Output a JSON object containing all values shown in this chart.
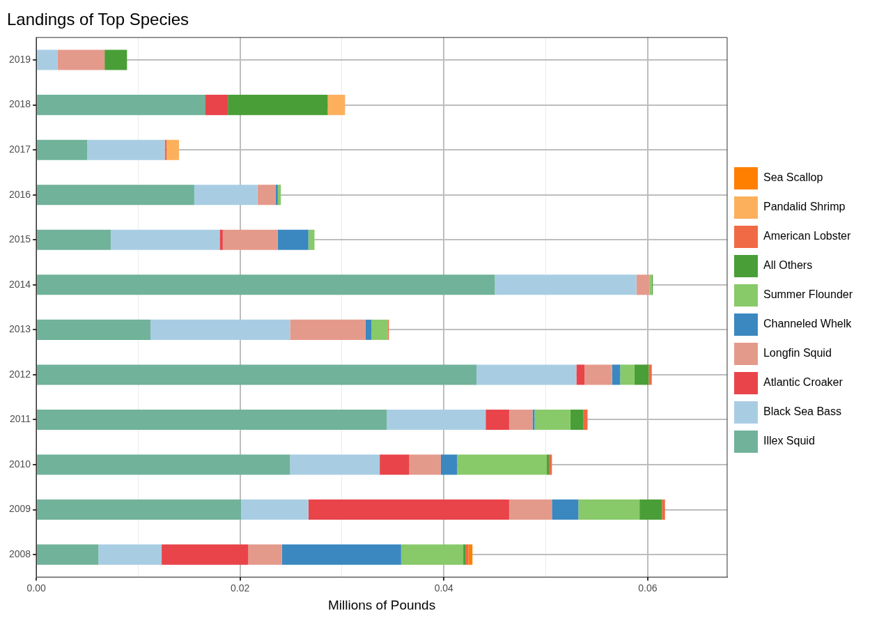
{
  "chart_data": {
    "type": "bar",
    "orientation": "horizontal",
    "stacked": true,
    "title": "Landings of Top Species",
    "xlabel": "Millions of Pounds",
    "categories": [
      "2019",
      "2018",
      "2017",
      "2016",
      "2015",
      "2014",
      "2013",
      "2012",
      "2011",
      "2010",
      "2009",
      "2008"
    ],
    "xlim": [
      0,
      0.0678
    ],
    "xticks": [
      {
        "value": 0,
        "label": "0.00"
      },
      {
        "value": 0.01,
        "label": null
      },
      {
        "value": 0.02,
        "label": "0.02"
      },
      {
        "value": 0.03,
        "label": null
      },
      {
        "value": 0.04,
        "label": "0.04"
      },
      {
        "value": 0.05,
        "label": null
      },
      {
        "value": 0.06,
        "label": "0.06"
      }
    ],
    "grid": true,
    "legend": "right",
    "series": [
      {
        "name": "Illex Squid",
        "color": "#70b29a",
        "values": [
          null,
          0.0166,
          0.005,
          0.0155,
          0.0073,
          0.045,
          0.0112,
          0.0432,
          0.0344,
          0.0249,
          0.0201,
          0.0061
        ]
      },
      {
        "name": "Black Sea Bass",
        "color": "#a8cde3",
        "values": [
          0.0021,
          null,
          0.0076,
          0.0062,
          0.0107,
          0.0139,
          0.0137,
          0.0098,
          0.0097,
          0.0088,
          0.0066,
          0.0062
        ]
      },
      {
        "name": "Atlantic Croaker",
        "color": "#e8444a",
        "values": [
          null,
          0.0022,
          null,
          null,
          0.0003,
          null,
          null,
          0.0008,
          0.0023,
          0.0029,
          0.0197,
          0.0085
        ]
      },
      {
        "name": "Longfin Squid",
        "color": "#e49a8b",
        "values": [
          0.0046,
          null,
          null,
          0.0018,
          0.0054,
          0.0013,
          0.0074,
          0.0027,
          0.0023,
          0.0031,
          0.0042,
          0.0033
        ]
      },
      {
        "name": "Channeled Whelk",
        "color": "#3b88c0",
        "values": [
          null,
          null,
          null,
          0.0002,
          0.003,
          null,
          0.0006,
          0.0008,
          0.0002,
          0.0016,
          0.0026,
          0.0117
        ]
      },
      {
        "name": "Summer Flounder",
        "color": "#88c96a",
        "values": [
          null,
          null,
          null,
          0.0003,
          0.0006,
          0.0002,
          0.0016,
          0.0014,
          0.0035,
          0.0088,
          0.006,
          0.0061
        ]
      },
      {
        "name": "All Others",
        "color": "#4a9e37",
        "values": [
          0.0022,
          0.0098,
          null,
          null,
          null,
          0.0001,
          null,
          0.0014,
          0.0013,
          0.0002,
          0.0022,
          0.0002
        ]
      },
      {
        "name": "American Lobster",
        "color": "#f06a45",
        "values": [
          null,
          null,
          0.0002,
          null,
          null,
          null,
          0.0001,
          0.0003,
          0.0004,
          0.0003,
          0.0003,
          0.0003
        ]
      },
      {
        "name": "Pandalid Shrimp",
        "color": "#fdb05c",
        "values": [
          null,
          0.0017,
          0.0012,
          null,
          null,
          null,
          null,
          null,
          null,
          null,
          null,
          null
        ]
      },
      {
        "name": "Sea Scallop",
        "color": "#ff7f00",
        "values": [
          null,
          null,
          null,
          null,
          null,
          null,
          null,
          null,
          null,
          null,
          null,
          0.0004
        ]
      }
    ]
  }
}
